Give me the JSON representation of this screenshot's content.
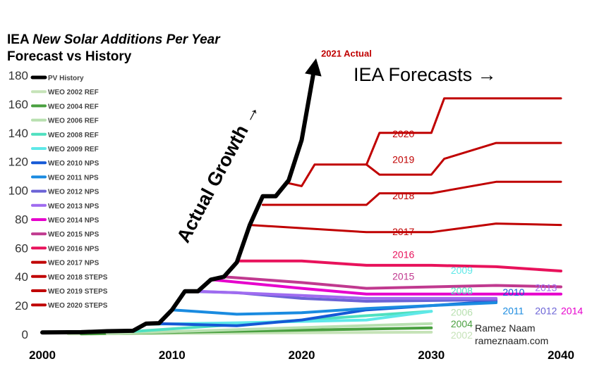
{
  "header": {
    "title_prefix": "IEA",
    "title_italic": "New Solar Additions Per Year",
    "subtitle": "Forecast vs History"
  },
  "credits": {
    "name": "Ramez Naam",
    "site": "rameznaam.com"
  },
  "colors": {
    "history": "#000000",
    "forecast_dark_red": "#c00000",
    "npS2016": "#e8125b",
    "nps2015": "#c0398f",
    "nps2014": "#e600cc",
    "nps2013": "#9f6bf0",
    "nps2012": "#6b63d6",
    "nps2011": "#1a8be0",
    "nps2010": "#1559d6",
    "ref2009": "#5ee8e8",
    "ref2008": "#4fe0c0",
    "ref2006": "#b8e0b0",
    "ref2004": "#4aa040",
    "ref2002": "#c6e3b8",
    "label_blue_2010": "#1877e0",
    "label_blue_2011": "#1aa0ea",
    "label_2012": "#8a72d8",
    "label_2013": "#b06fe0"
  },
  "chart_data": {
    "type": "line",
    "title": "IEA New Solar Additions Per Year",
    "subtitle": "Forecast vs History",
    "xlim": [
      2000,
      2040
    ],
    "ylim": [
      0,
      180
    ],
    "xticks": [
      2000,
      2010,
      2020,
      2030,
      2040
    ],
    "yticks": [
      0,
      20,
      40,
      60,
      80,
      100,
      120,
      140,
      160,
      180
    ],
    "grid": false,
    "legend_position": "left",
    "annotations": [
      {
        "text": "2021 Actual",
        "x": 2021.5,
        "y": 193,
        "color": "#c00000"
      },
      {
        "text": "IEA Forecasts →",
        "x": 2024,
        "y": 176,
        "color": "#000000"
      },
      {
        "text": "Actual Growth →",
        "x": 2014,
        "y": 110,
        "color": "#000000",
        "rotation": -62
      }
    ],
    "series": [
      {
        "name": "PV History",
        "color": "#000000",
        "width": 6,
        "arrow": true,
        "label": "",
        "points": [
          [
            2000,
            1.3
          ],
          [
            2003,
            1.5
          ],
          [
            2005,
            2.2
          ],
          [
            2007,
            2.5
          ],
          [
            2008,
            7.5
          ],
          [
            2009,
            7.8
          ],
          [
            2010,
            17
          ],
          [
            2011,
            30
          ],
          [
            2012,
            30
          ],
          [
            2013,
            38
          ],
          [
            2014,
            40
          ],
          [
            2015,
            50
          ],
          [
            2016,
            76
          ],
          [
            2017,
            96
          ],
          [
            2018,
            96
          ],
          [
            2019,
            107
          ],
          [
            2020,
            135
          ],
          [
            2021,
            186
          ]
        ]
      },
      {
        "name": "WEO 2002 REF",
        "color": "#c6e3b8",
        "width": 4,
        "label": "2002",
        "label_at": [
          2031.5,
          -3
        ],
        "points": [
          [
            2002,
            0.3
          ],
          [
            2030,
            1.5
          ]
        ]
      },
      {
        "name": "WEO 2004 REF",
        "color": "#4aa040",
        "width": 4,
        "label": "2004",
        "label_at": [
          2031.5,
          5
        ],
        "points": [
          [
            2003,
            0.3
          ],
          [
            2030,
            4.5
          ]
        ]
      },
      {
        "name": "WEO 2006 REF",
        "color": "#b8e0b0",
        "width": 4,
        "label": "2006",
        "label_at": [
          2031.5,
          13
        ],
        "points": [
          [
            2005,
            0.5
          ],
          [
            2030,
            7.5
          ]
        ]
      },
      {
        "name": "WEO 2008 REF",
        "color": "#4fe0c0",
        "width": 4,
        "label": "2008",
        "label_at": [
          2031.5,
          28
        ],
        "points": [
          [
            2007,
            2
          ],
          [
            2030,
            16
          ]
        ]
      },
      {
        "name": "WEO 2009 REF",
        "color": "#5ee8e8",
        "width": 4,
        "label": "2009",
        "label_at": [
          2031.5,
          42
        ],
        "points": [
          [
            2008,
            7
          ],
          [
            2015,
            8
          ],
          [
            2025,
            10
          ],
          [
            2030,
            16
          ]
        ]
      },
      {
        "name": "WEO 2010 NPS",
        "color": "#1559d6",
        "width": 4,
        "label": "2010",
        "label_at": [
          2035.5,
          27
        ],
        "points": [
          [
            2009,
            7.5
          ],
          [
            2015,
            6
          ],
          [
            2020,
            10
          ],
          [
            2025,
            17
          ],
          [
            2035,
            23
          ]
        ]
      },
      {
        "name": "WEO 2011 NPS",
        "color": "#1a8be0",
        "width": 4,
        "label": "2011",
        "label_at": [
          2035.5,
          14
        ],
        "points": [
          [
            2010,
            17
          ],
          [
            2015,
            14
          ],
          [
            2020,
            15
          ],
          [
            2025,
            18
          ],
          [
            2035,
            22
          ]
        ]
      },
      {
        "name": "WEO 2012 NPS",
        "color": "#6b63d6",
        "width": 4,
        "label": "2012",
        "label_at": [
          2038,
          14
        ],
        "points": [
          [
            2011,
            30
          ],
          [
            2015,
            29
          ],
          [
            2020,
            25
          ],
          [
            2025,
            23
          ],
          [
            2035,
            24
          ]
        ]
      },
      {
        "name": "WEO 2013 NPS",
        "color": "#9f6bf0",
        "width": 4,
        "label": "2013",
        "label_at": [
          2038,
          30
        ],
        "points": [
          [
            2012,
            30
          ],
          [
            2020,
            27
          ],
          [
            2025,
            25
          ],
          [
            2035,
            25
          ]
        ]
      },
      {
        "name": "WEO 2014 NPS",
        "color": "#e600cc",
        "width": 4,
        "label": "2014",
        "label_at": [
          2040,
          14
        ],
        "points": [
          [
            2013,
            38
          ],
          [
            2020,
            32
          ],
          [
            2025,
            28
          ],
          [
            2030,
            28
          ],
          [
            2040,
            28
          ]
        ]
      },
      {
        "name": "WEO 2015 NPS",
        "color": "#c0398f",
        "width": 4,
        "label": "2015",
        "label_at": [
          2027,
          38
        ],
        "points": [
          [
            2014,
            40
          ],
          [
            2020,
            36
          ],
          [
            2025,
            32
          ],
          [
            2035,
            34
          ],
          [
            2040,
            33
          ]
        ]
      },
      {
        "name": "WEO 2016 NPS",
        "color": "#e8125b",
        "width": 4,
        "label": "2016",
        "label_at": [
          2027,
          53
        ],
        "points": [
          [
            2015,
            51
          ],
          [
            2020,
            51
          ],
          [
            2025,
            48
          ],
          [
            2030,
            48
          ],
          [
            2035,
            47
          ],
          [
            2040,
            44
          ]
        ]
      },
      {
        "name": "WEO 2017 NPS",
        "color": "#c00000",
        "width": 3,
        "label": "2017",
        "label_at": [
          2027,
          69
        ],
        "points": [
          [
            2016,
            76
          ],
          [
            2025,
            71
          ],
          [
            2030,
            71
          ],
          [
            2035,
            77
          ],
          [
            2040,
            76
          ]
        ]
      },
      {
        "name": "WEO 2018 STEPS",
        "color": "#c00000",
        "width": 3,
        "label": "2018",
        "label_at": [
          2027,
          94
        ],
        "points": [
          [
            2017,
            90
          ],
          [
            2025,
            90
          ],
          [
            2026,
            98
          ],
          [
            2030,
            98
          ],
          [
            2035,
            106
          ],
          [
            2040,
            106
          ]
        ]
      },
      {
        "name": "WEO 2019 STEPS",
        "color": "#c00000",
        "width": 3,
        "label": "2019",
        "label_at": [
          2027,
          119
        ],
        "points": [
          [
            2019,
            105
          ],
          [
            2020,
            103
          ],
          [
            2021,
            118
          ],
          [
            2025,
            118
          ],
          [
            2026,
            111
          ],
          [
            2029,
            111
          ],
          [
            2030,
            111
          ],
          [
            2031,
            122
          ],
          [
            2035,
            133
          ],
          [
            2040,
            133
          ]
        ]
      },
      {
        "name": "WEO 2020 STEPS",
        "color": "#c00000",
        "width": 3,
        "label": "2020",
        "label_at": [
          2027,
          137
        ],
        "points": [
          [
            2025,
            118
          ],
          [
            2026,
            140
          ],
          [
            2030,
            140
          ],
          [
            2031,
            164
          ],
          [
            2040,
            164
          ]
        ]
      }
    ]
  }
}
